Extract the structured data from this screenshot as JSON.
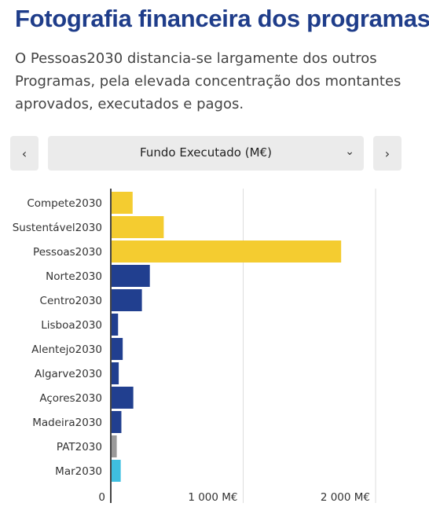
{
  "header": {
    "title": "Fotografia financeira dos programas",
    "description": "O Pessoas2030 distancia-se largamente dos outros Programas, pela elevada concentração dos montantes aprovados, executados e pagos."
  },
  "controls": {
    "prev_icon": "chevron-left-icon",
    "next_icon": "chevron-right-icon",
    "dropdown_icon": "chevron-down-icon",
    "selected_metric": "Fundo Executado (M€)"
  },
  "chart_data": {
    "type": "bar",
    "orientation": "horizontal",
    "title": "",
    "xlabel": "",
    "ylabel": "",
    "xlim": [
      0,
      2000
    ],
    "x_ticks": [
      0,
      1000,
      2000
    ],
    "x_tick_labels": [
      "0",
      "1 000 M€",
      "2 000 M€"
    ],
    "grid": true,
    "categories": [
      "Compete2030",
      "Sustentável2030",
      "Pessoas2030",
      "Norte2030",
      "Centro2030",
      "Lisboa2030",
      "Alentejo2030",
      "Algarve2030",
      "Açores2030",
      "Madeira2030",
      "PAT2030",
      "Mar2030"
    ],
    "values": [
      165,
      400,
      1740,
      295,
      235,
      55,
      90,
      60,
      170,
      80,
      45,
      75
    ],
    "colors": [
      "#f4cc30",
      "#f4cc30",
      "#f4cc30",
      "#213f8f",
      "#213f8f",
      "#213f8f",
      "#213f8f",
      "#213f8f",
      "#213f8f",
      "#213f8f",
      "#9a9a9a",
      "#3fbfe0"
    ],
    "axis_color": "#444444",
    "grid_color": "#dddddd"
  }
}
